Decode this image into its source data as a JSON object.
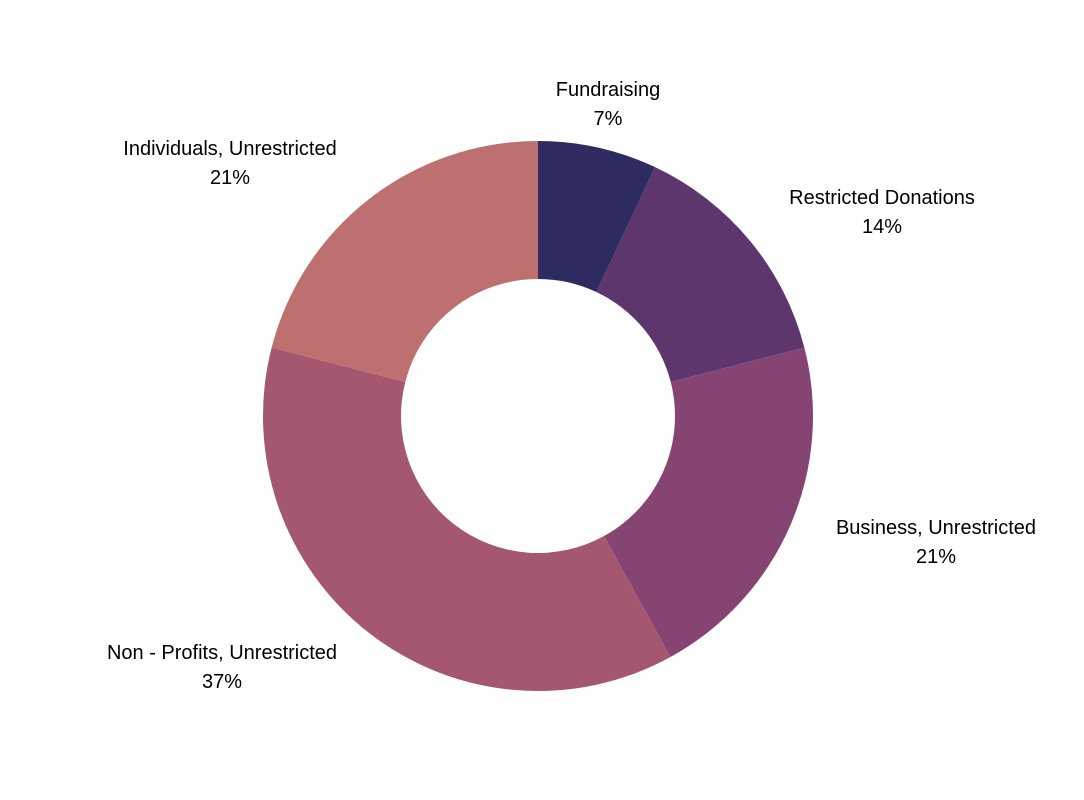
{
  "chart_data": {
    "type": "pie",
    "variant": "donut",
    "title": "",
    "legend": "none",
    "slices": [
      {
        "name": "Fundraising",
        "value": 7,
        "label": "7%",
        "color": "#2d2b5f"
      },
      {
        "name": "Restricted Donations",
        "value": 14,
        "label": "14%",
        "color": "#5c366c"
      },
      {
        "name": "Business, Unrestricted",
        "value": 21,
        "label": "21%",
        "color": "#854471"
      },
      {
        "name": "Non - Profits, Unrestricted",
        "value": 37,
        "label": "37%",
        "color": "#a65770"
      },
      {
        "name": "Individuals, Unrestricted",
        "value": 21,
        "label": "21%",
        "color": "#be6f6f"
      }
    ]
  }
}
